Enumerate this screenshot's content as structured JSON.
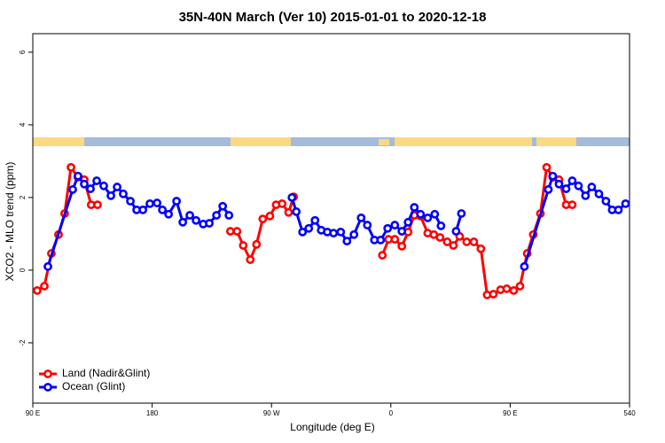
{
  "chart_data": {
    "type": "line",
    "title": "35N-40N March (Ver 10)   2015-01-01 to 2020-12-18",
    "x_label": "Longitude (deg E)",
    "y_label": "XCO2 - MLO trend (ppm)",
    "xlim": [
      90,
      540
    ],
    "xticks": [
      {
        "value": 90,
        "label": "90 E"
      },
      180,
      {
        "value": 270,
        "label": "90 W"
      },
      {
        "value": 360,
        "label": "0"
      },
      {
        "value": 450,
        "label": "90 E"
      },
      540
    ],
    "ylim": [
      -3.66,
      6.51
    ],
    "yticks": [
      -2,
      0,
      2,
      4,
      6
    ],
    "legend": "bottom-left",
    "series": [
      {
        "name": "Land (Nadir&Glint)",
        "color": "#ff0000",
        "x": [
          93.3,
          98.7,
          104,
          109.4,
          114,
          118.8,
          124,
          128.8,
          134,
          138.8,
          200,
          239,
          244,
          248.7,
          254,
          258.7,
          263.4,
          268.8,
          273.5,
          278,
          282.9,
          286.7,
          320,
          353.6,
          358.3,
          363,
          368.3,
          373,
          377.7,
          382.4,
          387.8,
          392.4,
          397.1,
          402.5,
          407.2,
          411.9,
          417.2,
          422.6,
          427.9,
          432.6,
          437.3,
          442.7,
          447.4,
          452.7,
          457.4,
          462.8,
          467.4,
          472.8,
          477.5,
          482.1,
          486.8,
          492.2,
          496.8
        ],
        "values": [
          -0.56,
          -0.44,
          0.46,
          0.98,
          1.56,
          2.83,
          2.56,
          2.49,
          1.8,
          1.8,
          null,
          1.07,
          1.07,
          0.68,
          0.29,
          0.71,
          1.41,
          1.49,
          1.8,
          1.83,
          1.59,
          2.02,
          null,
          0.41,
          0.85,
          0.85,
          0.66,
          1.05,
          1.51,
          1.49,
          1.02,
          0.98,
          0.9,
          0.78,
          0.68,
          0.93,
          0.78,
          0.78,
          0.59,
          -0.68,
          -0.66,
          -0.54,
          -0.51,
          -0.56,
          -0.44,
          0.46,
          0.98,
          1.56,
          2.83,
          2.56,
          2.49,
          1.8,
          1.8
        ]
      },
      {
        "name": "Ocean (Glint)",
        "color": "#0000ff",
        "x": [
          101.4,
          120.1,
          124.1,
          128.8,
          133.5,
          138.2,
          143.5,
          148.9,
          153.6,
          158.2,
          163.6,
          168.3,
          173,
          178.3,
          183.7,
          187.7,
          192.4,
          198.4,
          203.1,
          208.4,
          213.1,
          218.5,
          223.1,
          228.5,
          233.2,
          237.9,
          265,
          285.4,
          288.7,
          293.4,
          298.1,
          302.8,
          307.5,
          312.1,
          316.8,
          322.2,
          326.9,
          332.2,
          337.6,
          342.3,
          347.6,
          352.3,
          357.6,
          363,
          368.3,
          373,
          377.7,
          382.4,
          387.8,
          393.1,
          397.8,
          403,
          409.2,
          413.2,
          430,
          460.7,
          478.8,
          482.1,
          486.8,
          492.2,
          496.8,
          501.5,
          506.8,
          511.5,
          516.9,
          522.2,
          526.9,
          531.6,
          537
        ],
        "values": [
          0.1,
          2.22,
          2.59,
          2.37,
          2.24,
          2.46,
          2.32,
          2.05,
          2.29,
          2.1,
          1.9,
          1.66,
          1.66,
          1.83,
          1.85,
          1.66,
          1.54,
          1.9,
          1.32,
          1.51,
          1.37,
          1.27,
          1.29,
          1.51,
          1.76,
          1.51,
          null,
          2.0,
          1.61,
          1.05,
          1.15,
          1.37,
          1.1,
          1.05,
          1.02,
          1.05,
          0.8,
          0.98,
          1.44,
          1.24,
          0.83,
          0.83,
          1.15,
          1.24,
          1.07,
          1.32,
          1.73,
          1.54,
          1.44,
          1.54,
          1.22,
          null,
          1.07,
          1.56,
          null,
          0.1,
          2.22,
          2.59,
          2.37,
          2.24,
          2.46,
          2.32,
          2.05,
          2.29,
          2.1,
          1.9,
          1.66,
          1.66,
          1.83
        ]
      }
    ]
  }
}
